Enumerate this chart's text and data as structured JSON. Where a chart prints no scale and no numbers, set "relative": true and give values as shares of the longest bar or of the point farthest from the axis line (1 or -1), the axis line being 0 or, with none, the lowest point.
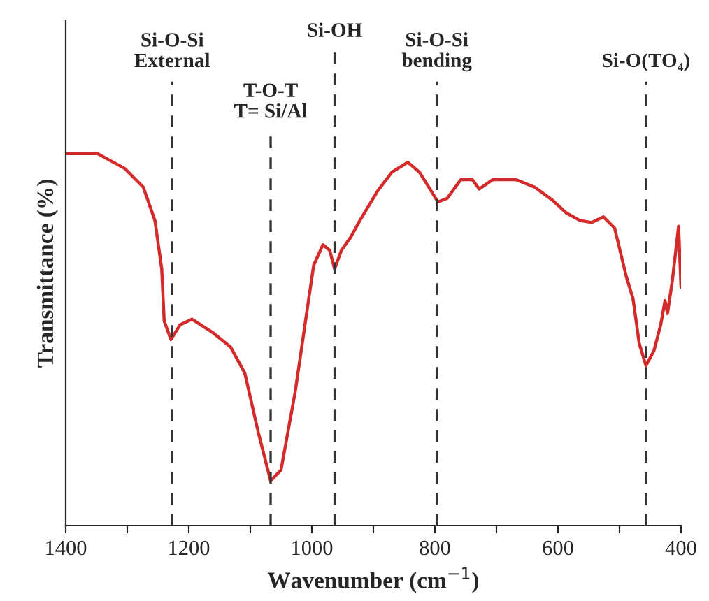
{
  "chart_data": {
    "type": "line",
    "relative": true,
    "xlabel": "Wavenumber (cm$^{−1}$)",
    "ylabel": "Transmittance (%)",
    "xlim": [
      1400,
      400
    ],
    "xticks": [
      1400,
      {
        "value": 1300,
        "label": null
      },
      1200,
      {
        "value": 1100,
        "label": null
      },
      1000,
      {
        "value": 900,
        "label": null
      },
      800,
      {
        "value": 700,
        "label": null
      },
      600,
      {
        "value": 500,
        "label": null
      },
      400
    ],
    "grid": false,
    "marker": "none",
    "line_style": "solid",
    "series": [
      {
        "color": "#d42a2a",
        "x": [
          1400,
          1348,
          1304,
          1274,
          1255,
          1244,
          1240,
          1229,
          1214,
          1195,
          1162,
          1132,
          1109,
          1087,
          1067,
          1050,
          1027,
          1005,
          997,
          982,
          971,
          963,
          952,
          937,
          922,
          893,
          870,
          844,
          825,
          795,
          780,
          758,
          739,
          728,
          706,
          668,
          638,
          609,
          586,
          564,
          545,
          526,
          508,
          489,
          478,
          468,
          457,
          444,
          433,
          426,
          422,
          414,
          404,
          400
        ],
        "values": [
          1.0,
          1.0,
          0.96,
          0.91,
          0.82,
          0.69,
          0.55,
          0.5,
          0.54,
          0.555,
          0.52,
          0.48,
          0.41,
          0.25,
          0.12,
          0.15,
          0.36,
          0.61,
          0.7,
          0.755,
          0.74,
          0.69,
          0.74,
          0.775,
          0.82,
          0.9,
          0.95,
          0.977,
          0.95,
          0.87,
          0.88,
          0.93,
          0.93,
          0.905,
          0.93,
          0.93,
          0.91,
          0.875,
          0.84,
          0.82,
          0.815,
          0.83,
          0.8,
          0.67,
          0.61,
          0.49,
          0.43,
          0.47,
          0.54,
          0.605,
          0.57,
          0.66,
          0.805,
          0.64
        ]
      }
    ],
    "ref_lines": [
      {
        "axis": "x",
        "value": 1227,
        "label": "Si-O-Si\nExternal",
        "color": "#333333",
        "line_style": "dashed"
      },
      {
        "axis": "x",
        "value": 1067,
        "label": "T-O-T\nT= Si/Al",
        "color": "#333333",
        "line_style": "dashed"
      },
      {
        "axis": "x",
        "value": 963,
        "label": "Si-OH",
        "color": "#333333",
        "line_style": "dashed"
      },
      {
        "axis": "x",
        "value": 797,
        "label": "Si-O-Si\nbending",
        "color": "#333333",
        "line_style": "dashed"
      },
      {
        "axis": "x",
        "value": 457,
        "label": "Si-O(TO₄)",
        "color": "#333333",
        "line_style": "dashed"
      }
    ]
  }
}
